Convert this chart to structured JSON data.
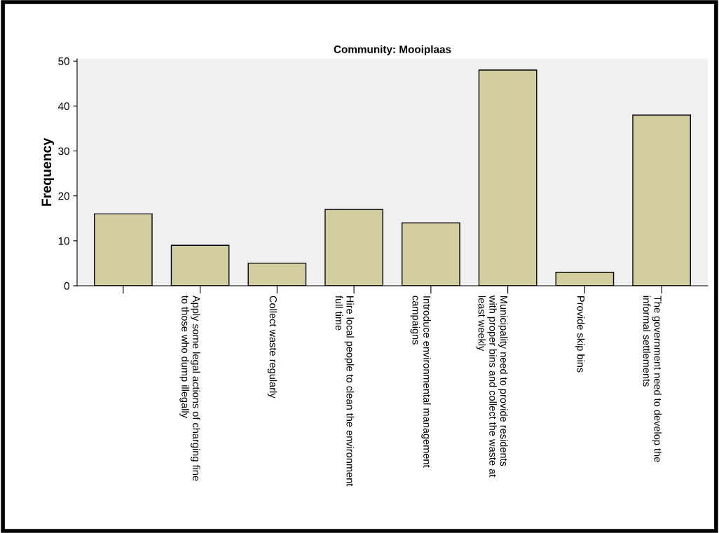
{
  "chart_data": {
    "type": "bar",
    "title": "Community: Mooiplaas",
    "ylabel": "Frequency",
    "categories": [
      null,
      "Apply some legal actions of charging fine\nto those who dump illegally",
      "Collect waste regularly",
      "Hire local people to clean the environment\nfull time",
      "Introduce environmental management\ncampaigns",
      "Municipality need to provide residents\nwith proper bins and collect the waste at\nleast weekly",
      "Provide skip bins",
      "The government need to develop the\ninformal settlements"
    ],
    "values": [
      16,
      9,
      5,
      17,
      14,
      48,
      3,
      38
    ],
    "color": "#d3cea0",
    "ylim": [
      0,
      50.5
    ],
    "yticks": [
      0,
      10,
      20,
      30,
      40,
      50
    ],
    "grid": false,
    "legend": false
  }
}
